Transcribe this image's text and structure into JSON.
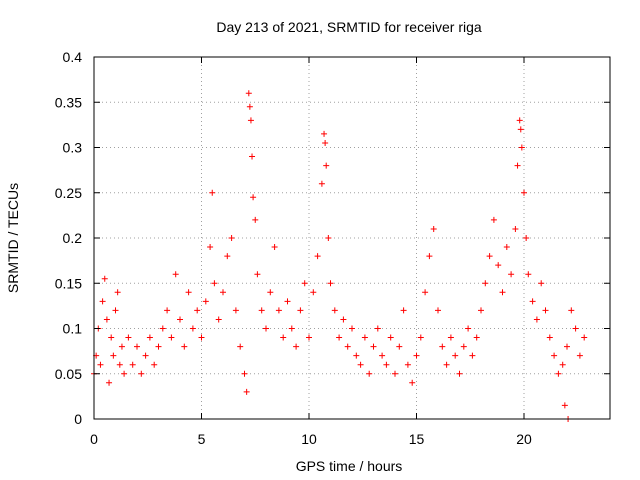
{
  "chart_data": {
    "type": "scatter",
    "title": "Day 213 of 2021, SRMTID for receiver riga",
    "xlabel": "GPS time / hours",
    "ylabel": "SRMTID / TECUs",
    "xlim": [
      0,
      24
    ],
    "ylim": [
      0,
      0.4
    ],
    "xticks": [
      0,
      5,
      10,
      15,
      20
    ],
    "xtick_labels": [
      "0",
      "5",
      "10",
      "15",
      "20"
    ],
    "yticks": [
      0,
      0.05,
      0.1,
      0.15,
      0.2,
      0.25,
      0.3,
      0.35,
      0.4
    ],
    "ytick_labels": [
      "0",
      "0.05",
      "0.1",
      "0.15",
      "0.2",
      "0.25",
      "0.3",
      "0.35",
      "0.4"
    ],
    "grid": true,
    "marker": "+",
    "marker_color": "#ff0000",
    "series": [
      {
        "name": "SRMTID",
        "points": [
          [
            0.0,
            0.05
          ],
          [
            0.1,
            0.07
          ],
          [
            0.2,
            0.1
          ],
          [
            0.3,
            0.06
          ],
          [
            0.4,
            0.13
          ],
          [
            0.5,
            0.155
          ],
          [
            0.6,
            0.11
          ],
          [
            0.7,
            0.04
          ],
          [
            0.8,
            0.09
          ],
          [
            0.9,
            0.07
          ],
          [
            1.0,
            0.12
          ],
          [
            1.1,
            0.14
          ],
          [
            1.2,
            0.06
          ],
          [
            1.3,
            0.08
          ],
          [
            1.4,
            0.05
          ],
          [
            1.6,
            0.09
          ],
          [
            1.8,
            0.06
          ],
          [
            2.0,
            0.08
          ],
          [
            2.2,
            0.05
          ],
          [
            2.4,
            0.07
          ],
          [
            2.6,
            0.09
          ],
          [
            2.8,
            0.06
          ],
          [
            3.0,
            0.08
          ],
          [
            3.2,
            0.1
          ],
          [
            3.4,
            0.12
          ],
          [
            3.6,
            0.09
          ],
          [
            3.8,
            0.16
          ],
          [
            4.0,
            0.11
          ],
          [
            4.2,
            0.08
          ],
          [
            4.4,
            0.14
          ],
          [
            4.6,
            0.1
          ],
          [
            4.8,
            0.12
          ],
          [
            5.0,
            0.09
          ],
          [
            5.2,
            0.13
          ],
          [
            5.4,
            0.19
          ],
          [
            5.5,
            0.25
          ],
          [
            5.6,
            0.15
          ],
          [
            5.8,
            0.11
          ],
          [
            6.0,
            0.14
          ],
          [
            6.2,
            0.18
          ],
          [
            6.4,
            0.2
          ],
          [
            6.6,
            0.12
          ],
          [
            6.8,
            0.08
          ],
          [
            7.0,
            0.05
          ],
          [
            7.1,
            0.03
          ],
          [
            7.2,
            0.36
          ],
          [
            7.25,
            0.345
          ],
          [
            7.3,
            0.33
          ],
          [
            7.35,
            0.29
          ],
          [
            7.4,
            0.245
          ],
          [
            7.5,
            0.22
          ],
          [
            7.6,
            0.16
          ],
          [
            7.8,
            0.12
          ],
          [
            8.0,
            0.1
          ],
          [
            8.2,
            0.14
          ],
          [
            8.4,
            0.19
          ],
          [
            8.6,
            0.12
          ],
          [
            8.8,
            0.09
          ],
          [
            9.0,
            0.13
          ],
          [
            9.2,
            0.1
          ],
          [
            9.4,
            0.08
          ],
          [
            9.6,
            0.12
          ],
          [
            9.8,
            0.15
          ],
          [
            10.0,
            0.09
          ],
          [
            10.2,
            0.14
          ],
          [
            10.4,
            0.18
          ],
          [
            10.6,
            0.26
          ],
          [
            10.7,
            0.315
          ],
          [
            10.75,
            0.305
          ],
          [
            10.8,
            0.28
          ],
          [
            10.9,
            0.2
          ],
          [
            11.0,
            0.15
          ],
          [
            11.2,
            0.12
          ],
          [
            11.4,
            0.09
          ],
          [
            11.6,
            0.11
          ],
          [
            11.8,
            0.08
          ],
          [
            12.0,
            0.1
          ],
          [
            12.2,
            0.07
          ],
          [
            12.4,
            0.06
          ],
          [
            12.6,
            0.09
          ],
          [
            12.8,
            0.05
          ],
          [
            13.0,
            0.08
          ],
          [
            13.2,
            0.1
          ],
          [
            13.4,
            0.07
          ],
          [
            13.6,
            0.06
          ],
          [
            13.8,
            0.09
          ],
          [
            14.0,
            0.05
          ],
          [
            14.2,
            0.08
          ],
          [
            14.4,
            0.12
          ],
          [
            14.6,
            0.06
          ],
          [
            14.8,
            0.04
          ],
          [
            15.0,
            0.07
          ],
          [
            15.2,
            0.09
          ],
          [
            15.4,
            0.14
          ],
          [
            15.6,
            0.18
          ],
          [
            15.8,
            0.21
          ],
          [
            16.0,
            0.12
          ],
          [
            16.2,
            0.08
          ],
          [
            16.4,
            0.06
          ],
          [
            16.6,
            0.09
          ],
          [
            16.8,
            0.07
          ],
          [
            17.0,
            0.05
          ],
          [
            17.2,
            0.08
          ],
          [
            17.4,
            0.1
          ],
          [
            17.6,
            0.07
          ],
          [
            17.8,
            0.09
          ],
          [
            18.0,
            0.12
          ],
          [
            18.2,
            0.15
          ],
          [
            18.4,
            0.18
          ],
          [
            18.6,
            0.22
          ],
          [
            18.8,
            0.17
          ],
          [
            19.0,
            0.14
          ],
          [
            19.2,
            0.19
          ],
          [
            19.4,
            0.16
          ],
          [
            19.6,
            0.21
          ],
          [
            19.7,
            0.28
          ],
          [
            19.8,
            0.33
          ],
          [
            19.85,
            0.32
          ],
          [
            19.9,
            0.3
          ],
          [
            20.0,
            0.25
          ],
          [
            20.1,
            0.2
          ],
          [
            20.2,
            0.16
          ],
          [
            20.4,
            0.13
          ],
          [
            20.6,
            0.11
          ],
          [
            20.8,
            0.15
          ],
          [
            21.0,
            0.12
          ],
          [
            21.2,
            0.09
          ],
          [
            21.4,
            0.07
          ],
          [
            21.6,
            0.05
          ],
          [
            21.8,
            0.06
          ],
          [
            22.0,
            0.08
          ],
          [
            22.2,
            0.12
          ],
          [
            22.4,
            0.1
          ],
          [
            22.6,
            0.07
          ],
          [
            22.8,
            0.09
          ],
          [
            21.9,
            0.015
          ],
          [
            22.05,
            0.0
          ]
        ]
      }
    ]
  }
}
